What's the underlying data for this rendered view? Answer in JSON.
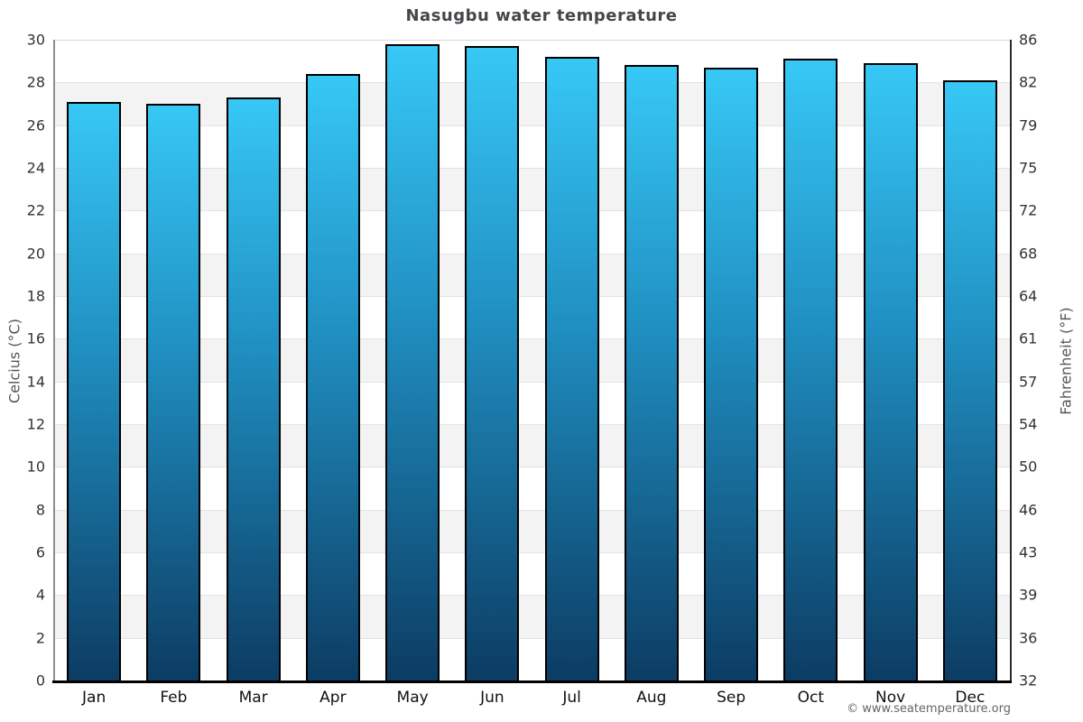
{
  "title": "Nasugbu water temperature",
  "attribution": "© www.seatemperature.org",
  "axes": {
    "left_title": "Celcius (°C)",
    "right_title": "Fahrenheit (°F)"
  },
  "chart_data": {
    "type": "bar",
    "title": "Nasugbu water temperature",
    "categories": [
      "Jan",
      "Feb",
      "Mar",
      "Apr",
      "May",
      "Jun",
      "Jul",
      "Aug",
      "Sep",
      "Oct",
      "Nov",
      "Dec"
    ],
    "values": [
      27.1,
      27.0,
      27.3,
      28.4,
      29.8,
      29.7,
      29.2,
      28.8,
      28.7,
      29.1,
      28.9,
      28.1
    ],
    "unit": "°C",
    "ylabel": "Celcius (°C)",
    "ylabel_right": "Fahrenheit (°F)",
    "ylim": [
      0,
      30
    ],
    "yticks_celsius": [
      30,
      28,
      26,
      24,
      22,
      20,
      18,
      16,
      14,
      12,
      10,
      8,
      6,
      4,
      2,
      0
    ],
    "yticks_fahrenheit": [
      86,
      82,
      79,
      75,
      72,
      68,
      64,
      61,
      57,
      54,
      50,
      46,
      43,
      39,
      36,
      32
    ],
    "grid": "horizontal-bands-alternating-2C",
    "legend": "none",
    "colors": {
      "bar_gradient_top": "#37c8f6",
      "bar_gradient_mid": "#2090c2",
      "bar_gradient_bottom": "#0c3c63",
      "bar_border": "#000000",
      "band_gray": "#f3f3f3",
      "gridline": "#e3e3e3",
      "top_gridline": "#d9d9d9",
      "title_text": "#43464b",
      "tick_text": "#333333",
      "axis_title_text": "#555555",
      "attribution_text": "#666666"
    }
  }
}
